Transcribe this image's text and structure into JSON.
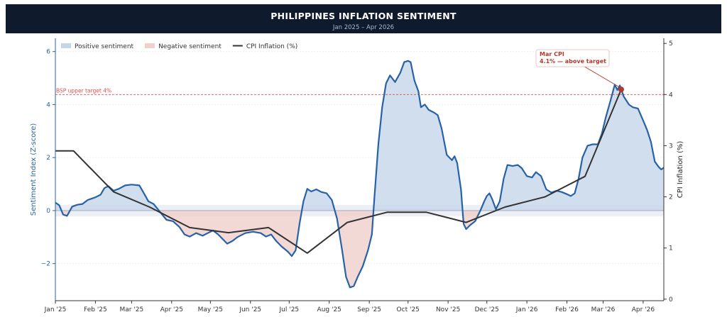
{
  "header": {
    "title": "PHILIPPINES INFLATION SENTIMENT",
    "subtitle": "Jan 2025 – Apr 2026"
  },
  "colors": {
    "sentiment_line": "#2862a6",
    "positive_fill": "#c5d6ea",
    "negative_fill": "#f0d0cc",
    "cpi_line": "#333333",
    "target_line": "#d9534f",
    "annotation": "#b03a2e",
    "banner": "#0f1b2d"
  },
  "chart_data": {
    "type": "line",
    "legend": {
      "placement": "top-left",
      "entries": [
        {
          "label": "Positive sentiment",
          "kind": "patch",
          "color": "#c5d6ea"
        },
        {
          "label": "Negative sentiment",
          "kind": "patch",
          "color": "#f0d0cc"
        },
        {
          "label": "CPI Inflation (%)",
          "kind": "line",
          "color": "#333333"
        }
      ]
    },
    "x_axis": {
      "ticks": [
        "Jan '25",
        "Feb '25",
        "Mar '25",
        "Apr '25",
        "May '25",
        "Jun '25",
        "Jul '25",
        "Aug '25",
        "Sep '25",
        "Oct '25",
        "Nov '25",
        "Dec '25",
        "Jan '26",
        "Feb '26",
        "Mar '26",
        "Apr '26"
      ],
      "range": [
        "2025-01-01",
        "2026-04-17"
      ]
    },
    "y_left": {
      "label": "Sentiment Index (Z-score)",
      "range": [
        -3.4,
        6.5
      ],
      "ticks": [
        -2,
        0,
        2,
        4,
        6
      ]
    },
    "y_right": {
      "label": "CPI Inflation (%)",
      "range": [
        -0.03,
        5.1
      ],
      "ticks": [
        0,
        1,
        2,
        3,
        4,
        5
      ]
    },
    "reference_line": {
      "label": "BSP upper target 4%",
      "value": 4
    },
    "annotation": {
      "line1": "Mar CPI",
      "line2": "4.1% — above target",
      "date": "2026-03-15",
      "value": 4.1
    },
    "series": [
      {
        "name": "Sentiment Index",
        "axis": "left",
        "points": [
          [
            "2025-01-01",
            0.3
          ],
          [
            "2025-01-04",
            0.2
          ],
          [
            "2025-01-07",
            -0.15
          ],
          [
            "2025-01-10",
            -0.2
          ],
          [
            "2025-01-14",
            0.15
          ],
          [
            "2025-01-18",
            0.22
          ],
          [
            "2025-01-22",
            0.25
          ],
          [
            "2025-01-26",
            0.4
          ],
          [
            "2025-02-01",
            0.5
          ],
          [
            "2025-02-05",
            0.6
          ],
          [
            "2025-02-08",
            0.85
          ],
          [
            "2025-02-11",
            0.92
          ],
          [
            "2025-02-15",
            0.75
          ],
          [
            "2025-02-19",
            0.82
          ],
          [
            "2025-02-24",
            0.95
          ],
          [
            "2025-03-01",
            0.98
          ],
          [
            "2025-03-07",
            0.95
          ],
          [
            "2025-03-10",
            0.7
          ],
          [
            "2025-03-14",
            0.35
          ],
          [
            "2025-03-18",
            0.25
          ],
          [
            "2025-03-23",
            -0.05
          ],
          [
            "2025-03-28",
            -0.35
          ],
          [
            "2025-04-02",
            -0.4
          ],
          [
            "2025-04-07",
            -0.62
          ],
          [
            "2025-04-11",
            -0.9
          ],
          [
            "2025-04-15",
            -0.98
          ],
          [
            "2025-04-20",
            -0.85
          ],
          [
            "2025-04-25",
            -0.95
          ],
          [
            "2025-04-29",
            -0.85
          ],
          [
            "2025-05-03",
            -0.75
          ],
          [
            "2025-05-07",
            -0.9
          ],
          [
            "2025-05-11",
            -1.1
          ],
          [
            "2025-05-14",
            -1.25
          ],
          [
            "2025-05-18",
            -1.15
          ],
          [
            "2025-05-22",
            -1.0
          ],
          [
            "2025-05-28",
            -0.85
          ],
          [
            "2025-06-03",
            -0.8
          ],
          [
            "2025-06-09",
            -0.85
          ],
          [
            "2025-06-13",
            -0.98
          ],
          [
            "2025-06-17",
            -0.9
          ],
          [
            "2025-06-21",
            -1.15
          ],
          [
            "2025-06-25",
            -1.35
          ],
          [
            "2025-06-30",
            -1.55
          ],
          [
            "2025-07-03",
            -1.72
          ],
          [
            "2025-07-06",
            -1.5
          ],
          [
            "2025-07-09",
            -0.5
          ],
          [
            "2025-07-12",
            0.35
          ],
          [
            "2025-07-15",
            0.82
          ],
          [
            "2025-07-18",
            0.72
          ],
          [
            "2025-07-22",
            0.8
          ],
          [
            "2025-07-26",
            0.7
          ],
          [
            "2025-07-30",
            0.65
          ],
          [
            "2025-08-03",
            0.4
          ],
          [
            "2025-08-07",
            -0.3
          ],
          [
            "2025-08-11",
            -1.5
          ],
          [
            "2025-08-14",
            -2.5
          ],
          [
            "2025-08-17",
            -2.9
          ],
          [
            "2025-08-20",
            -2.85
          ],
          [
            "2025-08-23",
            -2.5
          ],
          [
            "2025-08-27",
            -2.1
          ],
          [
            "2025-08-31",
            -1.5
          ],
          [
            "2025-09-03",
            -0.9
          ],
          [
            "2025-09-05",
            0.5
          ],
          [
            "2025-09-08",
            2.5
          ],
          [
            "2025-09-11",
            3.9
          ],
          [
            "2025-09-14",
            4.8
          ],
          [
            "2025-09-17",
            5.1
          ],
          [
            "2025-09-21",
            4.85
          ],
          [
            "2025-09-25",
            5.2
          ],
          [
            "2025-09-28",
            5.6
          ],
          [
            "2025-10-01",
            5.65
          ],
          [
            "2025-10-03",
            5.6
          ],
          [
            "2025-10-06",
            4.9
          ],
          [
            "2025-10-09",
            4.5
          ],
          [
            "2025-10-11",
            3.9
          ],
          [
            "2025-10-14",
            4.0
          ],
          [
            "2025-10-17",
            3.8
          ],
          [
            "2025-10-21",
            3.7
          ],
          [
            "2025-10-24",
            3.6
          ],
          [
            "2025-10-27",
            3.1
          ],
          [
            "2025-10-31",
            2.1
          ],
          [
            "2025-11-04",
            1.9
          ],
          [
            "2025-11-06",
            2.05
          ],
          [
            "2025-11-08",
            1.8
          ],
          [
            "2025-11-11",
            0.8
          ],
          [
            "2025-11-13",
            -0.5
          ],
          [
            "2025-11-15",
            -0.7
          ],
          [
            "2025-11-18",
            -0.55
          ],
          [
            "2025-11-22",
            -0.4
          ],
          [
            "2025-11-26",
            0.0
          ],
          [
            "2025-11-29",
            0.35
          ],
          [
            "2025-12-01",
            0.55
          ],
          [
            "2025-12-03",
            0.65
          ],
          [
            "2025-12-05",
            0.45
          ],
          [
            "2025-12-08",
            0.05
          ],
          [
            "2025-12-11",
            0.35
          ],
          [
            "2025-12-14",
            1.2
          ],
          [
            "2025-12-17",
            1.72
          ],
          [
            "2025-12-21",
            1.68
          ],
          [
            "2025-12-25",
            1.72
          ],
          [
            "2025-12-28",
            1.6
          ],
          [
            "2026-01-01",
            1.3
          ],
          [
            "2026-01-05",
            1.25
          ],
          [
            "2026-01-08",
            1.45
          ],
          [
            "2026-01-12",
            1.3
          ],
          [
            "2026-01-16",
            0.8
          ],
          [
            "2026-01-20",
            0.68
          ],
          [
            "2026-01-24",
            0.75
          ],
          [
            "2026-01-28",
            0.7
          ],
          [
            "2026-02-01",
            0.62
          ],
          [
            "2026-02-04",
            0.55
          ],
          [
            "2026-02-07",
            0.65
          ],
          [
            "2026-02-10",
            1.2
          ],
          [
            "2026-02-13",
            2.0
          ],
          [
            "2026-02-17",
            2.45
          ],
          [
            "2026-02-21",
            2.5
          ],
          [
            "2026-02-25",
            2.5
          ],
          [
            "2026-02-28",
            2.9
          ],
          [
            "2026-03-03",
            3.5
          ],
          [
            "2026-03-07",
            4.2
          ],
          [
            "2026-03-10",
            4.75
          ],
          [
            "2026-03-12",
            4.55
          ],
          [
            "2026-03-14",
            4.72
          ],
          [
            "2026-03-17",
            4.3
          ],
          [
            "2026-03-21",
            4.0
          ],
          [
            "2026-03-24",
            3.9
          ],
          [
            "2026-03-28",
            3.85
          ],
          [
            "2026-04-01",
            3.4
          ],
          [
            "2026-04-04",
            3.05
          ],
          [
            "2026-04-07",
            2.6
          ],
          [
            "2026-04-10",
            1.85
          ],
          [
            "2026-04-13",
            1.65
          ],
          [
            "2026-04-15",
            1.55
          ],
          [
            "2026-04-17",
            1.62
          ]
        ]
      },
      {
        "name": "CPI Inflation (%)",
        "axis": "right",
        "points": [
          [
            "2025-01-01",
            2.9
          ],
          [
            "2025-01-15",
            2.9
          ],
          [
            "2025-02-15",
            2.1
          ],
          [
            "2025-03-15",
            1.8
          ],
          [
            "2025-04-15",
            1.4
          ],
          [
            "2025-05-15",
            1.3
          ],
          [
            "2025-06-15",
            1.4
          ],
          [
            "2025-07-15",
            0.9
          ],
          [
            "2025-08-15",
            1.5
          ],
          [
            "2025-09-15",
            1.7
          ],
          [
            "2025-10-15",
            1.7
          ],
          [
            "2025-11-15",
            1.5
          ],
          [
            "2025-12-15",
            1.8
          ],
          [
            "2026-01-15",
            2.0
          ],
          [
            "2026-02-15",
            2.4
          ],
          [
            "2026-03-15",
            4.1
          ]
        ]
      }
    ]
  }
}
